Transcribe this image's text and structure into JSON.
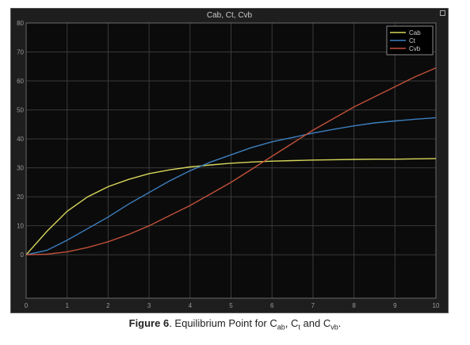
{
  "window": {
    "title": "Cab, Ct, Cvb"
  },
  "caption": {
    "label": "Figure 6",
    "text_prefix": ". Equilibrium Point for C",
    "sub1": "ab",
    "sep1": ", C",
    "sub2": "t",
    "sep2": " and C",
    "sub3": "vb",
    "suffix": "."
  },
  "colors": {
    "background": "#0b0b0b",
    "grid": "#3a3a3a",
    "axis_text": "#9a9a9a",
    "Cab": "#d6d65a",
    "Ct": "#3d7fbf",
    "Cvb": "#c0503a"
  },
  "chart_data": {
    "type": "line",
    "title": "Cab, Ct, Cvb",
    "xlabel": "",
    "ylabel": "",
    "xlim": [
      0,
      10
    ],
    "ylim": [
      -15,
      80
    ],
    "x_ticks": [
      0,
      1,
      2,
      3,
      4,
      5,
      6,
      7,
      8,
      9,
      10
    ],
    "y_ticks": [
      0,
      10,
      20,
      30,
      40,
      50,
      60,
      70,
      80
    ],
    "grid": true,
    "legend_position": "top-right",
    "x": [
      0,
      0.5,
      1,
      1.5,
      2,
      2.5,
      3,
      3.5,
      4,
      4.5,
      5,
      5.5,
      6,
      6.5,
      7,
      7.5,
      8,
      8.5,
      9,
      9.5,
      10
    ],
    "series": [
      {
        "name": "Cab",
        "color": "#d6d65a",
        "values": [
          0,
          8,
          15,
          20,
          23.5,
          26,
          28,
          29.3,
          30.3,
          31,
          31.6,
          32,
          32.3,
          32.5,
          32.7,
          32.8,
          32.9,
          33,
          33,
          33.1,
          33.2
        ]
      },
      {
        "name": "Ct",
        "color": "#3d7fbf",
        "values": [
          0,
          1.5,
          5,
          9,
          13,
          17.5,
          21.5,
          25.5,
          29,
          32,
          34.5,
          37,
          39,
          40.5,
          42,
          43.3,
          44.5,
          45.5,
          46.2,
          46.8,
          47.3
        ]
      },
      {
        "name": "Cvb",
        "color": "#c0503a",
        "values": [
          0,
          0.2,
          1,
          2.5,
          4.5,
          7,
          10,
          13.5,
          17,
          21,
          25,
          29.5,
          34,
          38.5,
          43,
          47,
          51,
          54.5,
          58,
          61.5,
          64.5
        ]
      }
    ]
  }
}
